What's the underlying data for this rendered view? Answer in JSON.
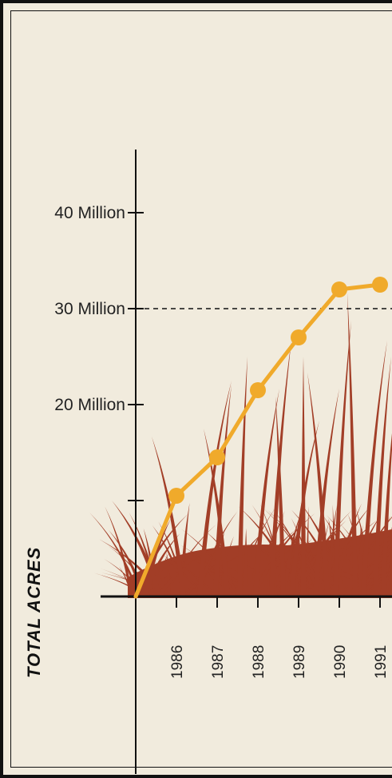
{
  "chart_data": {
    "type": "line",
    "title": "",
    "ylabel": "TOTAL ACRES",
    "xlabel": "",
    "x": [
      "1985",
      "1986",
      "1987",
      "1988",
      "1989",
      "1990",
      "1991"
    ],
    "x_tick_labels": [
      "1986",
      "1987",
      "1988",
      "1989",
      "1990",
      "1991"
    ],
    "series": [
      {
        "values": [
          0,
          10500000,
          14500000,
          21500000,
          27000000,
          32000000,
          32500000
        ]
      }
    ],
    "y_ticks": [
      {
        "value": 10000000,
        "label": ""
      },
      {
        "value": 20000000,
        "label": "20 Million"
      },
      {
        "value": 30000000,
        "label": "30 Million"
      },
      {
        "value": 40000000,
        "label": "40 Million"
      }
    ],
    "reference_line": 30000000,
    "ylim": [
      0,
      44000000
    ],
    "grid": false,
    "colors": {
      "line": "#f0aa2b",
      "grass": "#a23e27",
      "background": "#f1ebdd",
      "axis": "#111111"
    }
  }
}
